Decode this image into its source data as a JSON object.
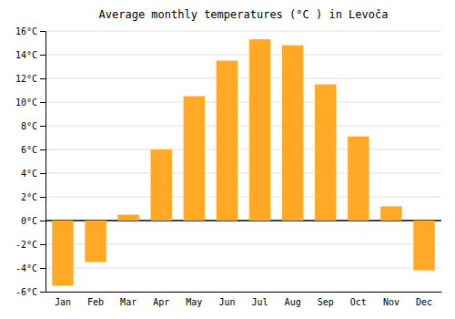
{
  "chart_data": {
    "type": "bar",
    "title": "Average monthly temperatures (°C ) in Levoča",
    "categories": [
      "Jan",
      "Feb",
      "Mar",
      "Apr",
      "May",
      "Jun",
      "Jul",
      "Aug",
      "Sep",
      "Oct",
      "Nov",
      "Dec"
    ],
    "values": [
      -5.5,
      -3.5,
      0.5,
      6.0,
      10.5,
      13.5,
      15.3,
      14.8,
      11.5,
      7.1,
      1.2,
      -4.2
    ],
    "color": "#FFA927",
    "ylim": [
      -6,
      16
    ],
    "yticks": [
      {
        "value": -6,
        "label": "-6°C"
      },
      {
        "value": -4,
        "label": "-4°C"
      },
      {
        "value": -2,
        "label": "-2°C"
      },
      {
        "value": 0,
        "label": "0°C"
      },
      {
        "value": 2,
        "label": "2°C"
      },
      {
        "value": 4,
        "label": "4°C"
      },
      {
        "value": 6,
        "label": "6°C"
      },
      {
        "value": 8,
        "label": "8°C"
      },
      {
        "value": 10,
        "label": "10°C"
      },
      {
        "value": 12,
        "label": "12°C"
      },
      {
        "value": 14,
        "label": "14°C"
      },
      {
        "value": 16,
        "label": "16°C"
      }
    ],
    "grid": true
  }
}
